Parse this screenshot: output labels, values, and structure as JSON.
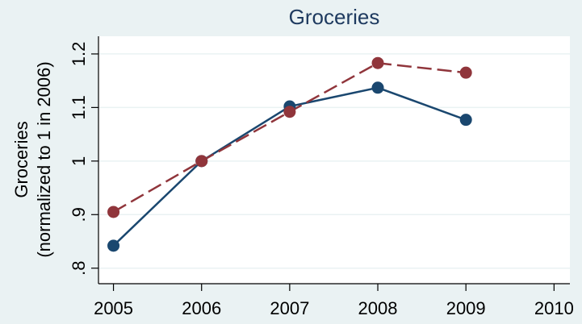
{
  "chart_data": {
    "type": "line",
    "title": "Groceries",
    "y_label": [
      "Groceries",
      "(normalized to 1 in 2006)"
    ],
    "x": [
      2005,
      2006,
      2007,
      2008,
      2009
    ],
    "xlim": [
      2004.83,
      2010.18
    ],
    "xticks": [
      2005,
      2006,
      2007,
      2008,
      2009,
      2010
    ],
    "ylim": [
      0.771,
      1.233
    ],
    "yticks": [
      {
        "value": 0.8,
        "label": ".8"
      },
      {
        "value": 0.9,
        "label": ".9"
      },
      1,
      1.1,
      1.2
    ],
    "grid": true,
    "series": [
      {
        "color": "#1a476f",
        "dash": "none",
        "values": [
          0.842,
          1.0,
          1.102,
          1.137,
          1.077
        ]
      },
      {
        "color": "#90353b",
        "dash": "18 7",
        "values": [
          0.905,
          1.0,
          1.092,
          1.183,
          1.165
        ]
      }
    ]
  }
}
